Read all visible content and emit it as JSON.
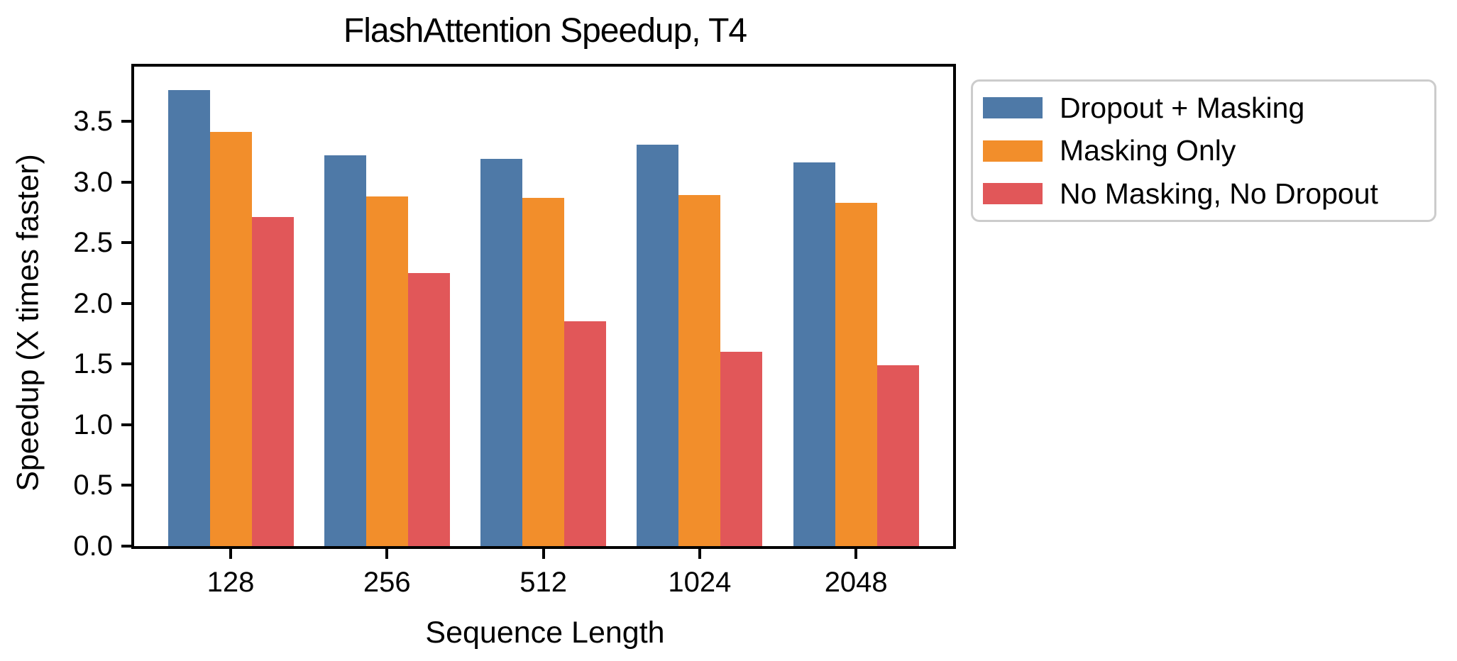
{
  "chart_data": {
    "type": "bar",
    "title": "FlashAttention Speedup, T4",
    "xlabel": "Sequence Length",
    "ylabel": "Speedup (X times faster)",
    "categories": [
      "128",
      "256",
      "512",
      "1024",
      "2048"
    ],
    "series": [
      {
        "name": "Dropout + Masking",
        "color": "#4E79A7",
        "values": [
          3.76,
          3.22,
          3.19,
          3.31,
          3.16
        ]
      },
      {
        "name": "Masking Only",
        "color": "#F28E2B",
        "values": [
          3.41,
          2.88,
          2.87,
          2.89,
          2.83
        ]
      },
      {
        "name": "No Masking, No Dropout",
        "color": "#E15759",
        "values": [
          2.71,
          2.25,
          1.85,
          1.6,
          1.49
        ]
      }
    ],
    "ylim": [
      0,
      3.95
    ],
    "yticks": [
      "0.0",
      "0.5",
      "1.0",
      "1.5",
      "2.0",
      "2.5",
      "3.0",
      "3.5"
    ],
    "grid": false,
    "legend_position": "upper right, outside axes",
    "colors": {
      "text": "#000000",
      "spine": "#000000",
      "legend_border": "#cccccc",
      "background": "#ffffff"
    }
  }
}
